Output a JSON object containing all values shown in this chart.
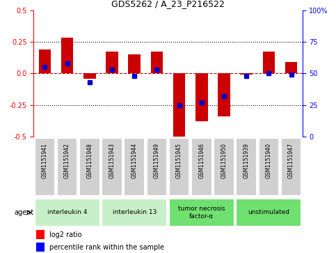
{
  "title": "GDS5262 / A_23_P216522",
  "samples": [
    "GSM1151941",
    "GSM1151942",
    "GSM1151948",
    "GSM1151943",
    "GSM1151944",
    "GSM1151949",
    "GSM1151945",
    "GSM1151946",
    "GSM1151950",
    "GSM1151939",
    "GSM1151940",
    "GSM1151947"
  ],
  "log2_ratio": [
    0.19,
    0.28,
    -0.04,
    0.17,
    0.15,
    0.17,
    -0.5,
    -0.38,
    -0.34,
    -0.01,
    0.17,
    0.09
  ],
  "percentile": [
    55,
    58,
    43,
    53,
    48,
    53,
    25,
    27,
    32,
    48,
    50,
    49
  ],
  "agents": [
    {
      "label": "interleukin 4",
      "start": 0,
      "end": 2,
      "color": "#c8f0c8"
    },
    {
      "label": "interleukin 13",
      "start": 3,
      "end": 5,
      "color": "#c8f0c8"
    },
    {
      "label": "tumor necrosis\nfactor-α",
      "start": 6,
      "end": 8,
      "color": "#70e070"
    },
    {
      "label": "unstimulated",
      "start": 9,
      "end": 11,
      "color": "#70e070"
    }
  ],
  "ylim_left": [
    -0.5,
    0.5
  ],
  "ylim_right": [
    0,
    100
  ],
  "yticks_left": [
    -0.5,
    -0.25,
    0.0,
    0.25,
    0.5
  ],
  "yticks_right": [
    0,
    25,
    50,
    75,
    100
  ],
  "ytick_labels_right": [
    "0",
    "25",
    "50",
    "75",
    "100%"
  ],
  "bar_color": "#cc0000",
  "dot_color": "#0000cc",
  "hline_color": "#cc0000",
  "dotted_color": "#000000",
  "bg_color": "#ffffff",
  "plot_bg": "#ffffff",
  "sample_box_color": "#d0d0d0"
}
